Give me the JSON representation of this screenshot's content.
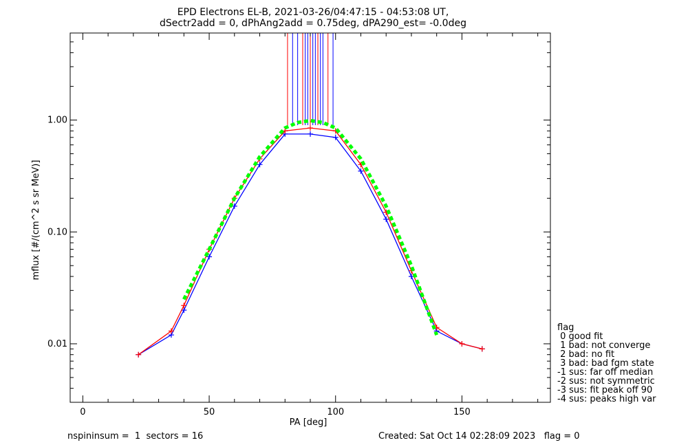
{
  "chart_data": {
    "type": "scatter",
    "title_line1": "EPD Electrons EL-B, 2021-03-26/04:47:15 - 04:53:08 UT,",
    "title_line2": "dSectr2add = 0, dPhAng2add = 0.75deg, dPA290_est=  -0.0deg",
    "xlabel": "PA [deg]",
    "ylabel": "mflux [#/(cm^2 s sr MeV)]",
    "xlim": [
      -5,
      185
    ],
    "ylim": [
      0.003,
      6.0
    ],
    "yscale": "log",
    "x_ticks": [
      0,
      50,
      100,
      150
    ],
    "x_tick_labels": [
      "0",
      "50",
      "100",
      "150"
    ],
    "y_ticks": [
      0.01,
      0.1,
      1.0
    ],
    "y_tick_labels": [
      "0.01",
      "0.10",
      "1.00"
    ],
    "series": [
      {
        "color": "#0000ff",
        "x": [
          22,
          35,
          40,
          50,
          60,
          70,
          80,
          90,
          100,
          110,
          120,
          130,
          140,
          150,
          158
        ],
        "y": [
          0.008,
          0.012,
          0.02,
          0.06,
          0.17,
          0.4,
          0.75,
          0.75,
          0.7,
          0.35,
          0.13,
          0.04,
          0.013,
          0.01,
          0.009
        ]
      },
      {
        "color": "#ff0000",
        "x": [
          22,
          35,
          40,
          50,
          60,
          70,
          80,
          90,
          100,
          110,
          120,
          130,
          140,
          150,
          158
        ],
        "y": [
          0.008,
          0.013,
          0.022,
          0.07,
          0.2,
          0.45,
          0.8,
          0.85,
          0.8,
          0.4,
          0.15,
          0.045,
          0.014,
          0.01,
          0.009
        ]
      },
      {
        "color": "#00ff00",
        "style": "dashed",
        "x": [
          40,
          50,
          60,
          70,
          80,
          85,
          90,
          95,
          100,
          110,
          120,
          130,
          140
        ],
        "y": [
          0.025,
          0.07,
          0.2,
          0.47,
          0.85,
          0.95,
          0.99,
          0.95,
          0.85,
          0.45,
          0.17,
          0.05,
          0.012
        ]
      }
    ],
    "vertical_lines_x": [
      81,
      83,
      85,
      87,
      88,
      89,
      90,
      91,
      92,
      93,
      94,
      95,
      97,
      99
    ],
    "legend": {
      "placement": "right",
      "title": "flag",
      "entries": [
        " 0 good fit",
        " 1 bad: not converge",
        " 2 bad: no fit",
        " 3 bad: bad fgm state",
        "-1 sus: far off median",
        "-2 sus: not symmetric",
        "-3 sus: fit peak off 90",
        "-4 sus: peaks high var"
      ]
    }
  },
  "footer": {
    "left": "nspininsum =  1  sectors = 16",
    "right": "Created: Sat Oct 14 02:28:09 2023   flag = 0"
  }
}
